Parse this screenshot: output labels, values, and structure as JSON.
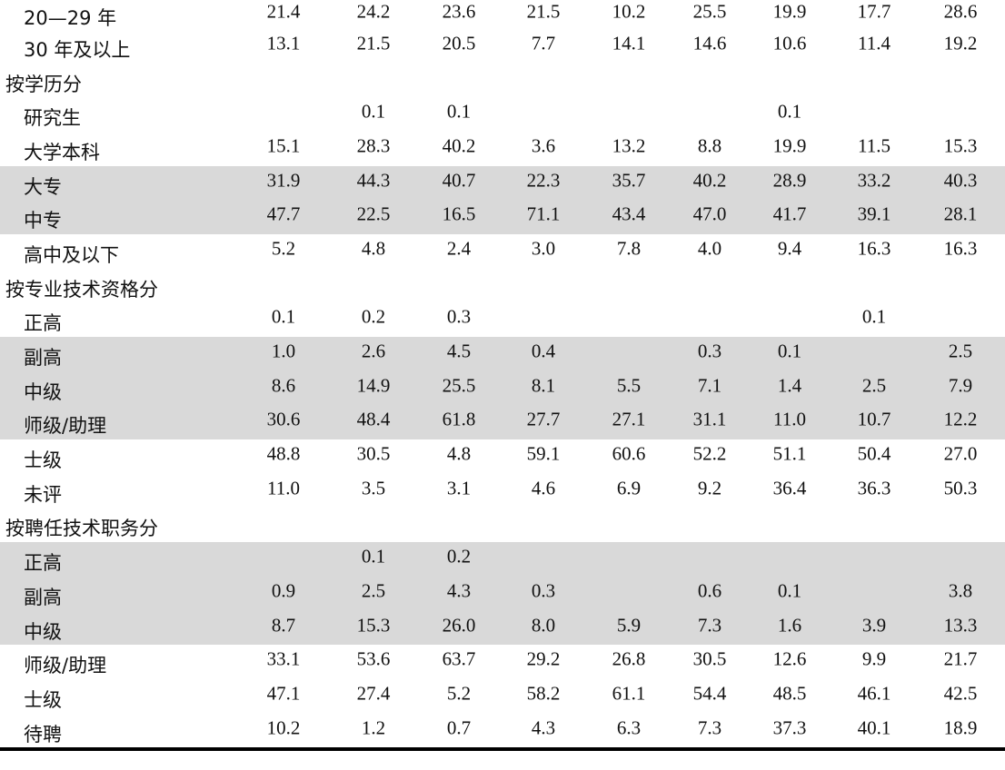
{
  "table": {
    "rows": [
      {
        "type": "sub",
        "label": "20—29 年",
        "values": [
          "21.4",
          "24.2",
          "23.6",
          "21.5",
          "10.2",
          "25.5",
          "19.9",
          "17.7",
          "28.6"
        ],
        "shaded": false
      },
      {
        "type": "sub",
        "label": "30 年及以上",
        "values": [
          "13.1",
          "21.5",
          "20.5",
          "7.7",
          "14.1",
          "14.6",
          "10.6",
          "11.4",
          "19.2"
        ],
        "shaded": false
      },
      {
        "type": "section",
        "label": "按学历分",
        "values": [],
        "shaded": false
      },
      {
        "type": "sub",
        "label": "研究生",
        "values": [
          "",
          "0.1",
          "0.1",
          "",
          "",
          "",
          "0.1",
          "",
          ""
        ],
        "shaded": false
      },
      {
        "type": "sub",
        "label": "大学本科",
        "values": [
          "15.1",
          "28.3",
          "40.2",
          "3.6",
          "13.2",
          "8.8",
          "19.9",
          "11.5",
          "15.3"
        ],
        "shaded": false
      },
      {
        "type": "sub",
        "label": "大专",
        "values": [
          "31.9",
          "44.3",
          "40.7",
          "22.3",
          "35.7",
          "40.2",
          "28.9",
          "33.2",
          "40.3"
        ],
        "shaded": true
      },
      {
        "type": "sub",
        "label": "中专",
        "values": [
          "47.7",
          "22.5",
          "16.5",
          "71.1",
          "43.4",
          "47.0",
          "41.7",
          "39.1",
          "28.1"
        ],
        "shaded": true
      },
      {
        "type": "sub",
        "label": "高中及以下",
        "values": [
          "5.2",
          "4.8",
          "2.4",
          "3.0",
          "7.8",
          "4.0",
          "9.4",
          "16.3",
          "16.3"
        ],
        "shaded": false
      },
      {
        "type": "section",
        "label": "按专业技术资格分",
        "values": [],
        "shaded": false
      },
      {
        "type": "sub",
        "label": "正高",
        "values": [
          "0.1",
          "0.2",
          "0.3",
          "",
          "",
          "",
          "",
          "0.1",
          ""
        ],
        "shaded": false
      },
      {
        "type": "sub",
        "label": "副高",
        "values": [
          "1.0",
          "2.6",
          "4.5",
          "0.4",
          "",
          "0.3",
          "0.1",
          "",
          "2.5"
        ],
        "shaded": true
      },
      {
        "type": "sub",
        "label": "中级",
        "values": [
          "8.6",
          "14.9",
          "25.5",
          "8.1",
          "5.5",
          "7.1",
          "1.4",
          "2.5",
          "7.9"
        ],
        "shaded": true
      },
      {
        "type": "sub",
        "label": "师级/助理",
        "values": [
          "30.6",
          "48.4",
          "61.8",
          "27.7",
          "27.1",
          "31.1",
          "11.0",
          "10.7",
          "12.2"
        ],
        "shaded": true
      },
      {
        "type": "sub",
        "label": "士级",
        "values": [
          "48.8",
          "30.5",
          "4.8",
          "59.1",
          "60.6",
          "52.2",
          "51.1",
          "50.4",
          "27.0"
        ],
        "shaded": false
      },
      {
        "type": "sub",
        "label": "未评",
        "values": [
          "11.0",
          "3.5",
          "3.1",
          "4.6",
          "6.9",
          "9.2",
          "36.4",
          "36.3",
          "50.3"
        ],
        "shaded": false
      },
      {
        "type": "section",
        "label": "按聘任技术职务分",
        "values": [],
        "shaded": false
      },
      {
        "type": "sub",
        "label": "正高",
        "values": [
          "",
          "0.1",
          "0.2",
          "",
          "",
          "",
          "",
          "",
          ""
        ],
        "shaded": true
      },
      {
        "type": "sub",
        "label": "副高",
        "values": [
          "0.9",
          "2.5",
          "4.3",
          "0.3",
          "",
          "0.6",
          "0.1",
          "",
          "3.8"
        ],
        "shaded": true
      },
      {
        "type": "sub",
        "label": "中级",
        "values": [
          "8.7",
          "15.3",
          "26.0",
          "8.0",
          "5.9",
          "7.3",
          "1.6",
          "3.9",
          "13.3"
        ],
        "shaded": true
      },
      {
        "type": "sub",
        "label": "师级/助理",
        "values": [
          "33.1",
          "53.6",
          "63.7",
          "29.2",
          "26.8",
          "30.5",
          "12.6",
          "9.9",
          "21.7"
        ],
        "shaded": false
      },
      {
        "type": "sub",
        "label": "士级",
        "values": [
          "47.1",
          "27.4",
          "5.2",
          "58.2",
          "61.1",
          "54.4",
          "48.5",
          "46.1",
          "42.5"
        ],
        "shaded": false
      },
      {
        "type": "sub",
        "label": "待聘",
        "values": [
          "10.2",
          "1.2",
          "0.7",
          "4.3",
          "6.3",
          "7.3",
          "37.3",
          "40.1",
          "18.9"
        ],
        "shaded": false
      }
    ]
  },
  "colors": {
    "shade": "#d9d9d9",
    "text": "#111111",
    "rule": "#000000"
  }
}
